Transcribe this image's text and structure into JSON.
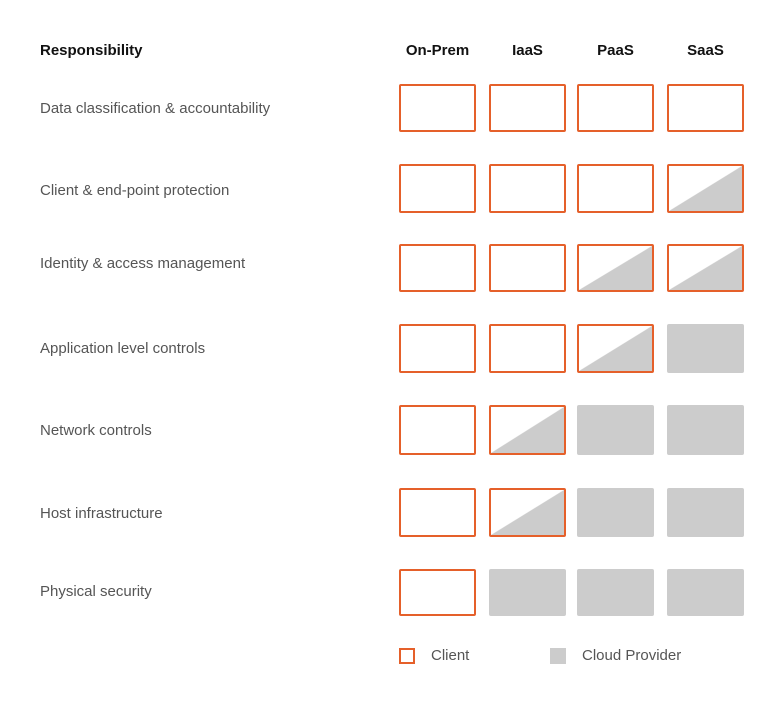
{
  "header": {
    "responsibility": "Responsibility",
    "columns": [
      "On-Prem",
      "IaaS",
      "PaaS",
      "SaaS"
    ]
  },
  "rows": [
    {
      "label": "Data classification & accountability",
      "cells": [
        "client",
        "client",
        "client",
        "client"
      ]
    },
    {
      "label": "Client & end-point protection",
      "cells": [
        "client",
        "client",
        "client",
        "shared"
      ]
    },
    {
      "label": "Identity & access management",
      "cells": [
        "client",
        "client",
        "shared",
        "shared"
      ]
    },
    {
      "label": "Application level controls",
      "cells": [
        "client",
        "client",
        "shared",
        "provider"
      ]
    },
    {
      "label": "Network controls",
      "cells": [
        "client",
        "shared",
        "provider",
        "provider"
      ]
    },
    {
      "label": "Host infrastructure",
      "cells": [
        "client",
        "shared",
        "provider",
        "provider"
      ]
    },
    {
      "label": "Physical security",
      "cells": [
        "client",
        "provider",
        "provider",
        "provider"
      ]
    }
  ],
  "legend": {
    "client": "Client",
    "provider": "Cloud Provider"
  },
  "colors": {
    "client_border": "#e5602a",
    "provider_fill": "#cccccc"
  }
}
